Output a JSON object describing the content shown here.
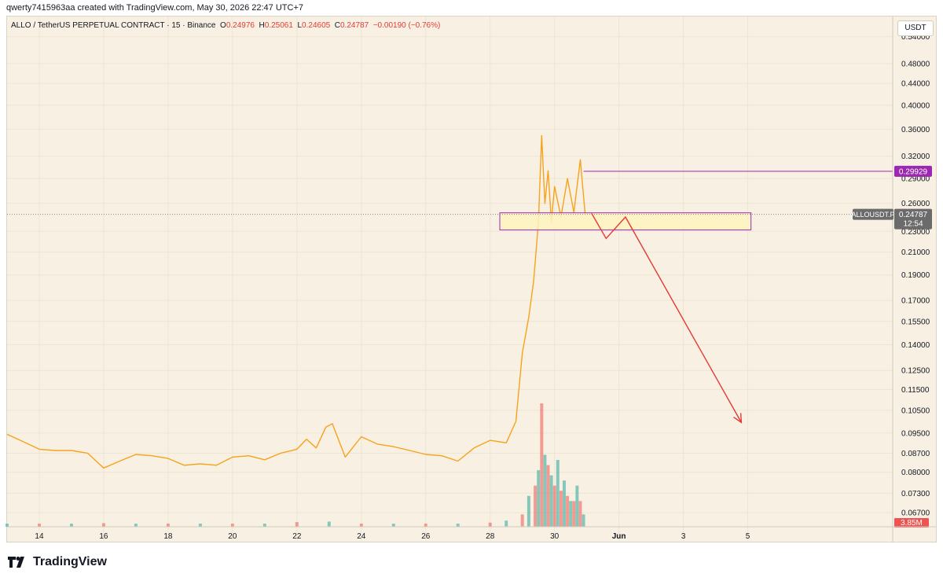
{
  "header": {
    "credit": "qwerty7415963aa created with TradingView.com, May 30, 2026 22:47 UTC+7"
  },
  "legend": {
    "symbol": "ALLO / TetherUS PERPETUAL CONTRACT · 15 · Binance",
    "open": "0.24976",
    "high": "0.25061",
    "low": "0.24605",
    "close": "0.24787",
    "change": "−0.00190 (−0.76%)"
  },
  "axis": {
    "currency": "USDT"
  },
  "footer": {
    "brand": "TradingView"
  },
  "colors": {
    "background": "#f8f1e3",
    "price_line": "#f7a21b",
    "up": "#26a69a",
    "down": "#ef5350",
    "arrow": "#e53935",
    "zone_fill": "#fff3c0",
    "zone_border": "#9c27b0"
  },
  "chart_data": {
    "type": "line",
    "scale": "log",
    "ylim": [
      0.063,
      0.59
    ],
    "y_ticks": [
      "0.54000",
      "0.48000",
      "0.44000",
      "0.40000",
      "0.36000",
      "0.32000",
      "0.29000",
      "0.26000",
      "0.23000",
      "0.21000",
      "0.19000",
      "0.17000",
      "0.15500",
      "0.14000",
      "0.12500",
      "0.11500",
      "0.10500",
      "0.09500",
      "0.08700",
      "0.08000",
      "0.07300",
      "0.06700"
    ],
    "x_ticks": [
      "14",
      "16",
      "18",
      "20",
      "22",
      "24",
      "26",
      "28",
      "30",
      "Jun",
      "3",
      "5"
    ],
    "x_tick_days": [
      14,
      16,
      18,
      20,
      22,
      24,
      26,
      28,
      30,
      32,
      34,
      36
    ],
    "xlim_days": [
      13.0,
      40.5
    ],
    "price_series": {
      "day": [
        13.0,
        13.5,
        14.0,
        14.5,
        15.0,
        15.5,
        16.0,
        16.5,
        17.0,
        17.5,
        18.0,
        18.5,
        19.0,
        19.5,
        20.0,
        20.5,
        21.0,
        21.5,
        22.0,
        22.3,
        22.6,
        22.9,
        23.1,
        23.5,
        24.0,
        24.5,
        25.0,
        25.5,
        26.0,
        26.5,
        27.0,
        27.5,
        28.0,
        28.5,
        28.8,
        29.0,
        29.2,
        29.35,
        29.5,
        29.6,
        29.7,
        29.8,
        29.9,
        30.0,
        30.2,
        30.4,
        30.6,
        30.8,
        30.95
      ],
      "close": [
        0.0945,
        0.0915,
        0.0885,
        0.088,
        0.088,
        0.087,
        0.0815,
        0.084,
        0.0865,
        0.086,
        0.085,
        0.0825,
        0.083,
        0.0825,
        0.0855,
        0.086,
        0.0845,
        0.087,
        0.0885,
        0.0925,
        0.089,
        0.0975,
        0.099,
        0.0855,
        0.0935,
        0.0905,
        0.0895,
        0.088,
        0.0865,
        0.086,
        0.084,
        0.089,
        0.092,
        0.091,
        0.1,
        0.135,
        0.158,
        0.185,
        0.24,
        0.35,
        0.26,
        0.3,
        0.24,
        0.28,
        0.245,
        0.29,
        0.25,
        0.315,
        0.2479
      ]
    },
    "last_price": {
      "symbol": "ALLOUSDT.P",
      "value": 0.24787,
      "label": "0.24787",
      "countdown": "12:54"
    },
    "horizontal_line": {
      "value": 0.29929,
      "label": "0.29929",
      "start_day": 30.9
    },
    "zone": {
      "low": 0.2315,
      "high": 0.2495,
      "start_day": 28.3,
      "end_day": 36.1
    },
    "projection_path": [
      [
        31.15,
        0.249
      ],
      [
        31.6,
        0.223
      ],
      [
        32.2,
        0.245
      ],
      [
        35.8,
        0.0995
      ]
    ],
    "volume": {
      "label": "3.85M",
      "day": [
        13,
        14,
        15,
        16,
        17,
        18,
        19,
        20,
        21,
        22,
        23,
        24,
        25,
        26,
        27,
        28,
        28.5,
        29,
        29.2,
        29.4,
        29.5,
        29.6,
        29.7,
        29.8,
        29.9,
        30.0,
        30.1,
        30.2,
        30.3,
        30.4,
        30.5,
        30.6,
        30.7,
        30.8,
        30.9
      ],
      "value": [
        0.3,
        0.3,
        0.3,
        0.35,
        0.3,
        0.3,
        0.3,
        0.3,
        0.3,
        0.45,
        0.5,
        0.3,
        0.3,
        0.3,
        0.3,
        0.4,
        0.6,
        1.2,
        3.0,
        4.0,
        5.5,
        12.0,
        7.0,
        6.0,
        5.0,
        4.0,
        6.5,
        3.5,
        4.5,
        3.0,
        2.5,
        2.5,
        4.0,
        2.5,
        1.2
      ],
      "max": 13.0
    }
  }
}
